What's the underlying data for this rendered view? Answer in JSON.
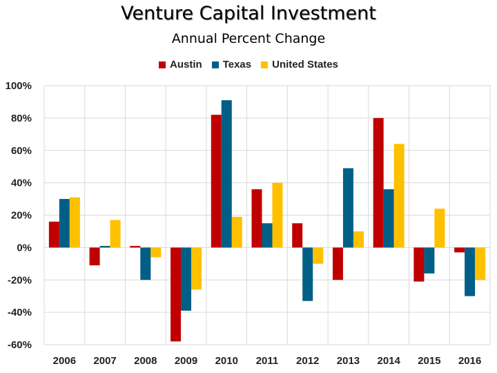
{
  "chart_data": {
    "type": "bar",
    "title": "Venture Capital Investment",
    "subtitle": "Annual Percent Change",
    "categories": [
      "2006",
      "2007",
      "2008",
      "2009",
      "2010",
      "2011",
      "2012",
      "2013",
      "2014",
      "2015",
      "2016"
    ],
    "series": [
      {
        "name": "Austin",
        "color": "#c00000",
        "values": [
          16,
          -11,
          1,
          -58,
          82,
          36,
          15,
          -20,
          80,
          -21,
          -3
        ]
      },
      {
        "name": "Texas",
        "color": "#005f87",
        "values": [
          30,
          1,
          -20,
          -39,
          91,
          15,
          -33,
          49,
          36,
          -16,
          -30
        ]
      },
      {
        "name": "United States",
        "color": "#ffc000",
        "values": [
          31,
          17,
          -6,
          -26,
          19,
          40,
          -10,
          10,
          64,
          24,
          -20
        ]
      }
    ],
    "ylim": [
      -60,
      100
    ],
    "yticks": [
      100,
      80,
      60,
      40,
      20,
      0,
      -20,
      -40,
      -60
    ],
    "ytick_labels": [
      "100%",
      "80%",
      "60%",
      "40%",
      "20%",
      "0%",
      "-20%",
      "-40%",
      "-60%"
    ],
    "grid": true,
    "legend_position": "top"
  }
}
